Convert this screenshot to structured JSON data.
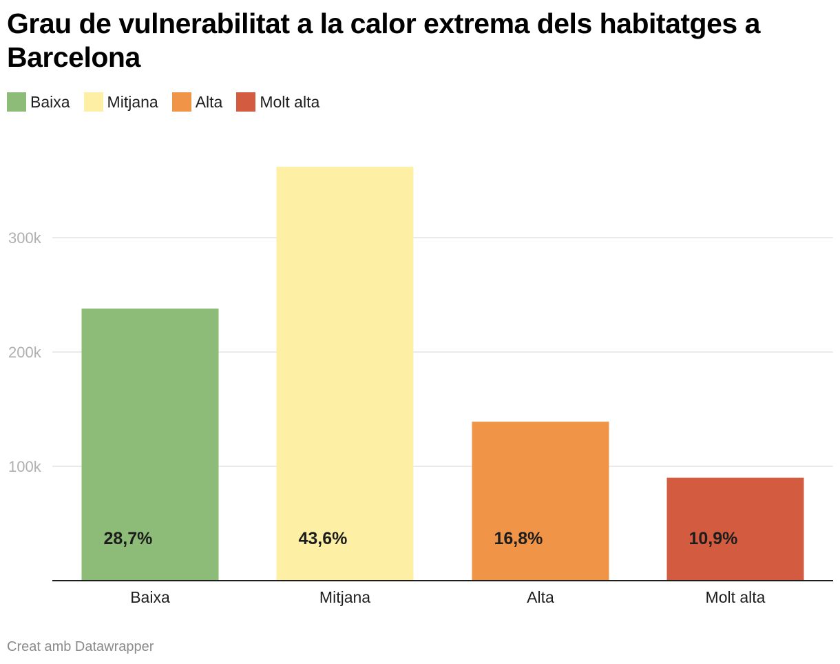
{
  "chart_data": {
    "type": "bar",
    "title": "Grau de vulnerabilitat a la calor extrema dels habitatges a Barcelona",
    "categories": [
      "Baixa",
      "Mitjana",
      "Alta",
      "Molt alta"
    ],
    "values": [
      238000,
      362000,
      139000,
      90000
    ],
    "data_labels": [
      "28,7%",
      "43,6%",
      "16,8%",
      "10,9%"
    ],
    "colors": [
      "#8dbb78",
      "#fdf0a5",
      "#f09447",
      "#d35b40"
    ],
    "legend": {
      "placement": "top-left",
      "entries": [
        {
          "label": "Baixa",
          "color": "#8dbb78"
        },
        {
          "label": "Mitjana",
          "color": "#fdf0a5"
        },
        {
          "label": "Alta",
          "color": "#f09447"
        },
        {
          "label": "Molt alta",
          "color": "#d35b40"
        }
      ]
    },
    "y_ticks": [
      {
        "value": 100000,
        "label": "100k"
      },
      {
        "value": 200000,
        "label": "200k"
      },
      {
        "value": 300000,
        "label": "300k"
      }
    ],
    "ylim": [
      0,
      400000
    ],
    "grid": true,
    "xlabel": "",
    "ylabel": ""
  },
  "footer": {
    "credit": "Creat amb Datawrapper"
  }
}
